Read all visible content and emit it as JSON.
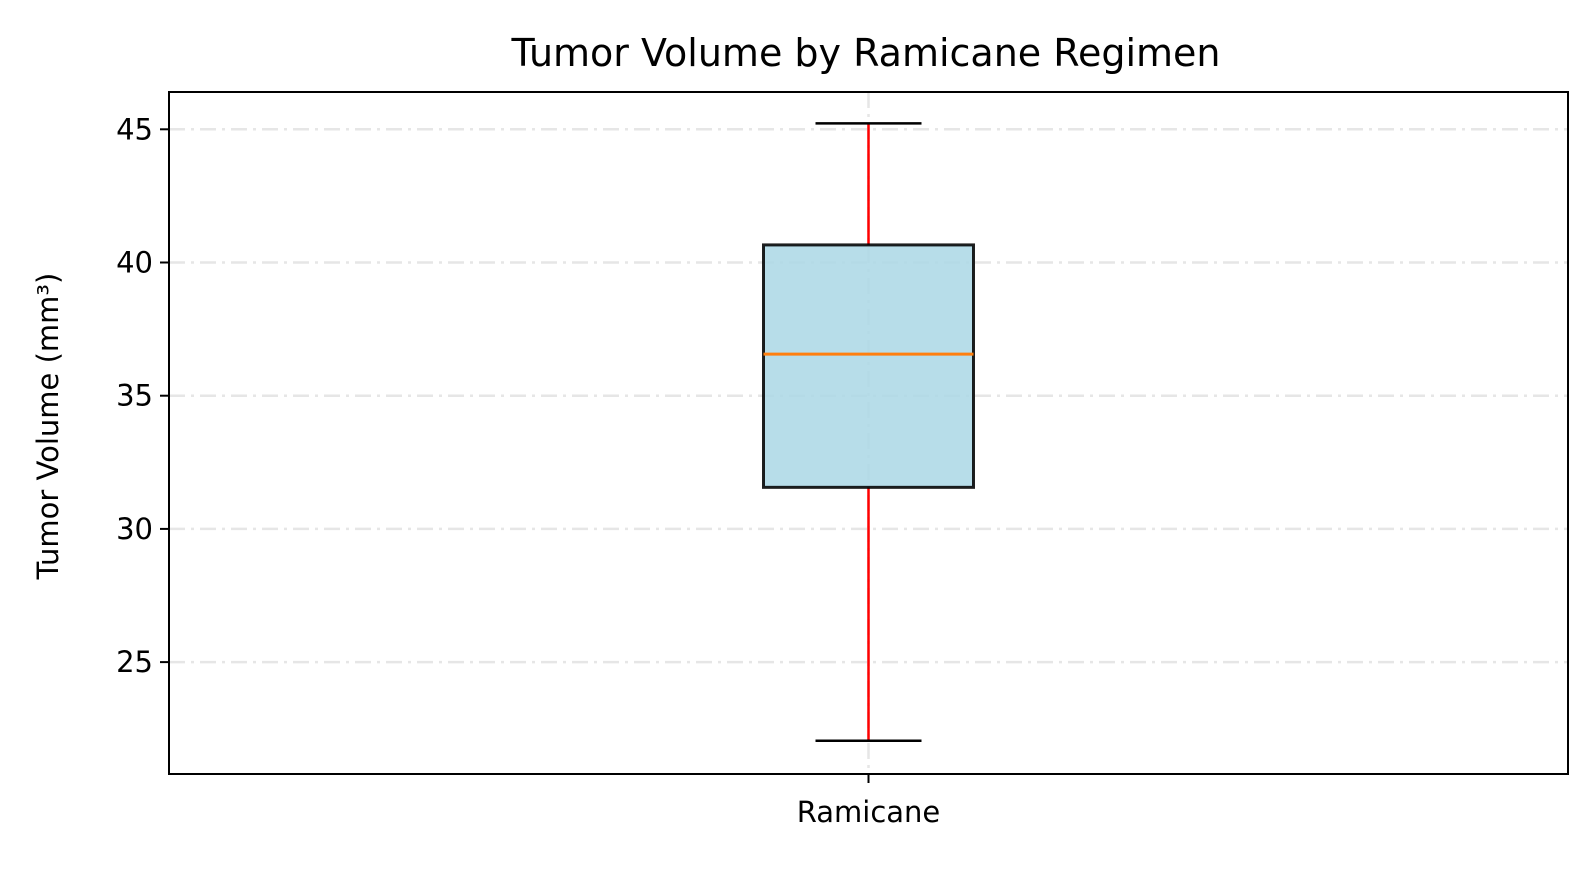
{
  "chart_data": {
    "type": "box",
    "title": "Tumor Volume by Ramicane Regimen",
    "xlabel": "",
    "ylabel": "Tumor Volume (mm³)",
    "ylim": [
      20.8,
      46.4
    ],
    "yticks": [
      25,
      30,
      35,
      40,
      45
    ],
    "ytick_labels": [
      "25",
      "30",
      "35",
      "40",
      "45"
    ],
    "grid": true,
    "categories": [
      "Ramicane"
    ],
    "boxes": [
      {
        "name": "Ramicane",
        "whislo": 22.05,
        "q1": 31.56,
        "med": 36.56,
        "q3": 40.66,
        "whishi": 45.22
      }
    ],
    "colors": {
      "box_fill": "#add8e6",
      "box_edge": "#000000",
      "median": "#ff7f0e",
      "whisker": "#ff0000",
      "cap": "#000000",
      "grid": "#e6e6e6"
    }
  }
}
